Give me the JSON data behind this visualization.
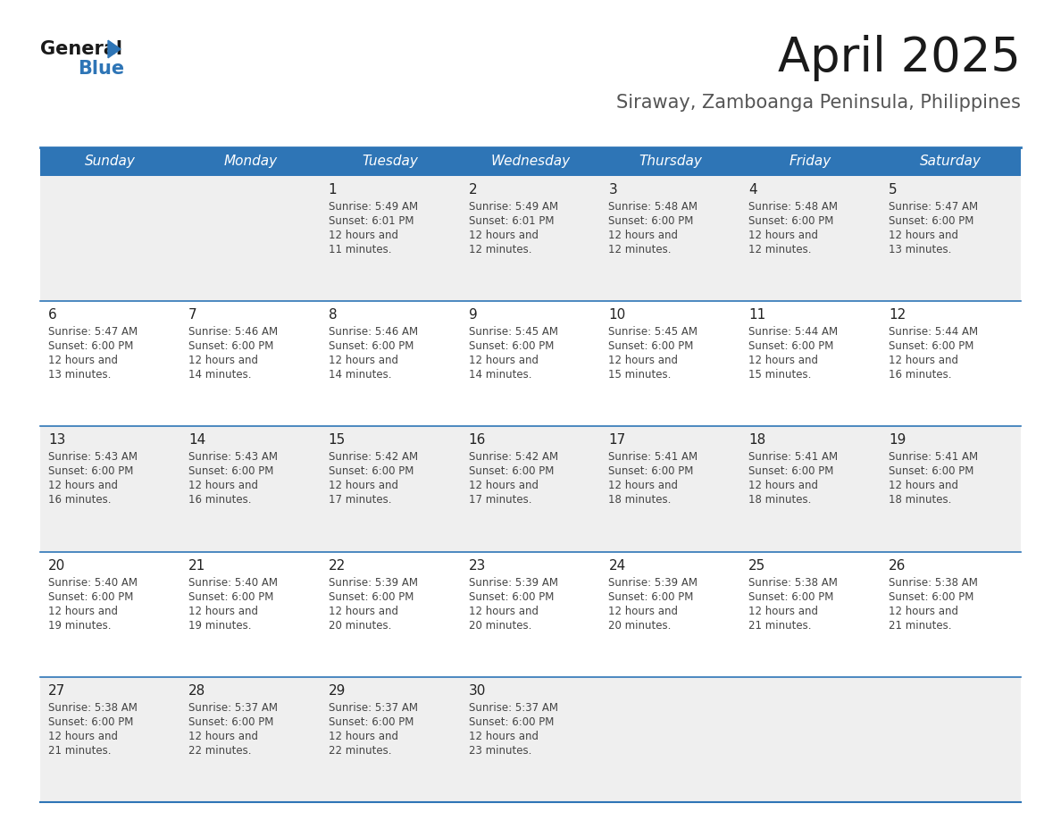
{
  "title": "April 2025",
  "subtitle": "Siraway, Zamboanga Peninsula, Philippines",
  "header_color": "#2E75B6",
  "header_text_color": "#FFFFFF",
  "day_names": [
    "Sunday",
    "Monday",
    "Tuesday",
    "Wednesday",
    "Thursday",
    "Friday",
    "Saturday"
  ],
  "cell_bg_gray": "#EFEFEF",
  "cell_bg_white": "#FFFFFF",
  "cell_border_color": "#2E75B6",
  "text_color": "#444444",
  "number_color": "#222222",
  "separator_color": "#2E75B6",
  "calendar_data": [
    [
      null,
      null,
      {
        "day": 1,
        "sunrise": "5:49 AM",
        "sunset": "6:01 PM",
        "daylight": "12 hours and 11 minutes."
      },
      {
        "day": 2,
        "sunrise": "5:49 AM",
        "sunset": "6:01 PM",
        "daylight": "12 hours and 12 minutes."
      },
      {
        "day": 3,
        "sunrise": "5:48 AM",
        "sunset": "6:00 PM",
        "daylight": "12 hours and 12 minutes."
      },
      {
        "day": 4,
        "sunrise": "5:48 AM",
        "sunset": "6:00 PM",
        "daylight": "12 hours and 12 minutes."
      },
      {
        "day": 5,
        "sunrise": "5:47 AM",
        "sunset": "6:00 PM",
        "daylight": "12 hours and 13 minutes."
      }
    ],
    [
      {
        "day": 6,
        "sunrise": "5:47 AM",
        "sunset": "6:00 PM",
        "daylight": "12 hours and 13 minutes."
      },
      {
        "day": 7,
        "sunrise": "5:46 AM",
        "sunset": "6:00 PM",
        "daylight": "12 hours and 14 minutes."
      },
      {
        "day": 8,
        "sunrise": "5:46 AM",
        "sunset": "6:00 PM",
        "daylight": "12 hours and 14 minutes."
      },
      {
        "day": 9,
        "sunrise": "5:45 AM",
        "sunset": "6:00 PM",
        "daylight": "12 hours and 14 minutes."
      },
      {
        "day": 10,
        "sunrise": "5:45 AM",
        "sunset": "6:00 PM",
        "daylight": "12 hours and 15 minutes."
      },
      {
        "day": 11,
        "sunrise": "5:44 AM",
        "sunset": "6:00 PM",
        "daylight": "12 hours and 15 minutes."
      },
      {
        "day": 12,
        "sunrise": "5:44 AM",
        "sunset": "6:00 PM",
        "daylight": "12 hours and 16 minutes."
      }
    ],
    [
      {
        "day": 13,
        "sunrise": "5:43 AM",
        "sunset": "6:00 PM",
        "daylight": "12 hours and 16 minutes."
      },
      {
        "day": 14,
        "sunrise": "5:43 AM",
        "sunset": "6:00 PM",
        "daylight": "12 hours and 16 minutes."
      },
      {
        "day": 15,
        "sunrise": "5:42 AM",
        "sunset": "6:00 PM",
        "daylight": "12 hours and 17 minutes."
      },
      {
        "day": 16,
        "sunrise": "5:42 AM",
        "sunset": "6:00 PM",
        "daylight": "12 hours and 17 minutes."
      },
      {
        "day": 17,
        "sunrise": "5:41 AM",
        "sunset": "6:00 PM",
        "daylight": "12 hours and 18 minutes."
      },
      {
        "day": 18,
        "sunrise": "5:41 AM",
        "sunset": "6:00 PM",
        "daylight": "12 hours and 18 minutes."
      },
      {
        "day": 19,
        "sunrise": "5:41 AM",
        "sunset": "6:00 PM",
        "daylight": "12 hours and 18 minutes."
      }
    ],
    [
      {
        "day": 20,
        "sunrise": "5:40 AM",
        "sunset": "6:00 PM",
        "daylight": "12 hours and 19 minutes."
      },
      {
        "day": 21,
        "sunrise": "5:40 AM",
        "sunset": "6:00 PM",
        "daylight": "12 hours and 19 minutes."
      },
      {
        "day": 22,
        "sunrise": "5:39 AM",
        "sunset": "6:00 PM",
        "daylight": "12 hours and 20 minutes."
      },
      {
        "day": 23,
        "sunrise": "5:39 AM",
        "sunset": "6:00 PM",
        "daylight": "12 hours and 20 minutes."
      },
      {
        "day": 24,
        "sunrise": "5:39 AM",
        "sunset": "6:00 PM",
        "daylight": "12 hours and 20 minutes."
      },
      {
        "day": 25,
        "sunrise": "5:38 AM",
        "sunset": "6:00 PM",
        "daylight": "12 hours and 21 minutes."
      },
      {
        "day": 26,
        "sunrise": "5:38 AM",
        "sunset": "6:00 PM",
        "daylight": "12 hours and 21 minutes."
      }
    ],
    [
      {
        "day": 27,
        "sunrise": "5:38 AM",
        "sunset": "6:00 PM",
        "daylight": "12 hours and 21 minutes."
      },
      {
        "day": 28,
        "sunrise": "5:37 AM",
        "sunset": "6:00 PM",
        "daylight": "12 hours and 22 minutes."
      },
      {
        "day": 29,
        "sunrise": "5:37 AM",
        "sunset": "6:00 PM",
        "daylight": "12 hours and 22 minutes."
      },
      {
        "day": 30,
        "sunrise": "5:37 AM",
        "sunset": "6:00 PM",
        "daylight": "12 hours and 23 minutes."
      },
      null,
      null,
      null
    ]
  ],
  "logo_text_general": "General",
  "logo_text_blue": "Blue",
  "logo_triangle_color": "#2E75B6"
}
